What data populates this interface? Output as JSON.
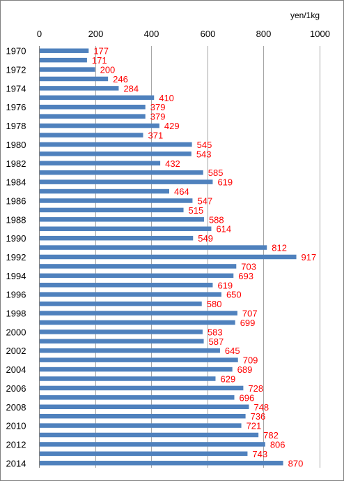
{
  "chart_data": {
    "type": "bar",
    "orientation": "horizontal",
    "unit_label": "yen/1kg",
    "xlim": [
      0,
      1000
    ],
    "x_ticks": [
      0,
      200,
      400,
      600,
      800,
      1000
    ],
    "x_axis_position": "top",
    "grid": "vertical",
    "legend": "none",
    "category_label_every": 2,
    "categories": [
      "1970",
      "1971",
      "1972",
      "1973",
      "1974",
      "1975",
      "1976",
      "1977",
      "1978",
      "1979",
      "1980",
      "1981",
      "1982",
      "1983",
      "1984",
      "1985",
      "1986",
      "1987",
      "1988",
      "1989",
      "1990",
      "1991",
      "1992",
      "1993",
      "1994",
      "1995",
      "1996",
      "1997",
      "1998",
      "1999",
      "2000",
      "2001",
      "2002",
      "2003",
      "2004",
      "2005",
      "2006",
      "2007",
      "2008",
      "2009",
      "2010",
      "2011",
      "2012",
      "2013",
      "2014"
    ],
    "values": [
      177,
      171,
      200,
      246,
      284,
      410,
      379,
      379,
      429,
      371,
      545,
      543,
      432,
      585,
      619,
      464,
      547,
      515,
      588,
      614,
      549,
      812,
      917,
      703,
      693,
      619,
      650,
      580,
      707,
      699,
      583,
      587,
      645,
      709,
      689,
      629,
      728,
      696,
      748,
      736,
      721,
      782,
      806,
      743,
      870
    ],
    "bar_color": "#4f81bd",
    "label_color": "#ff0000"
  }
}
